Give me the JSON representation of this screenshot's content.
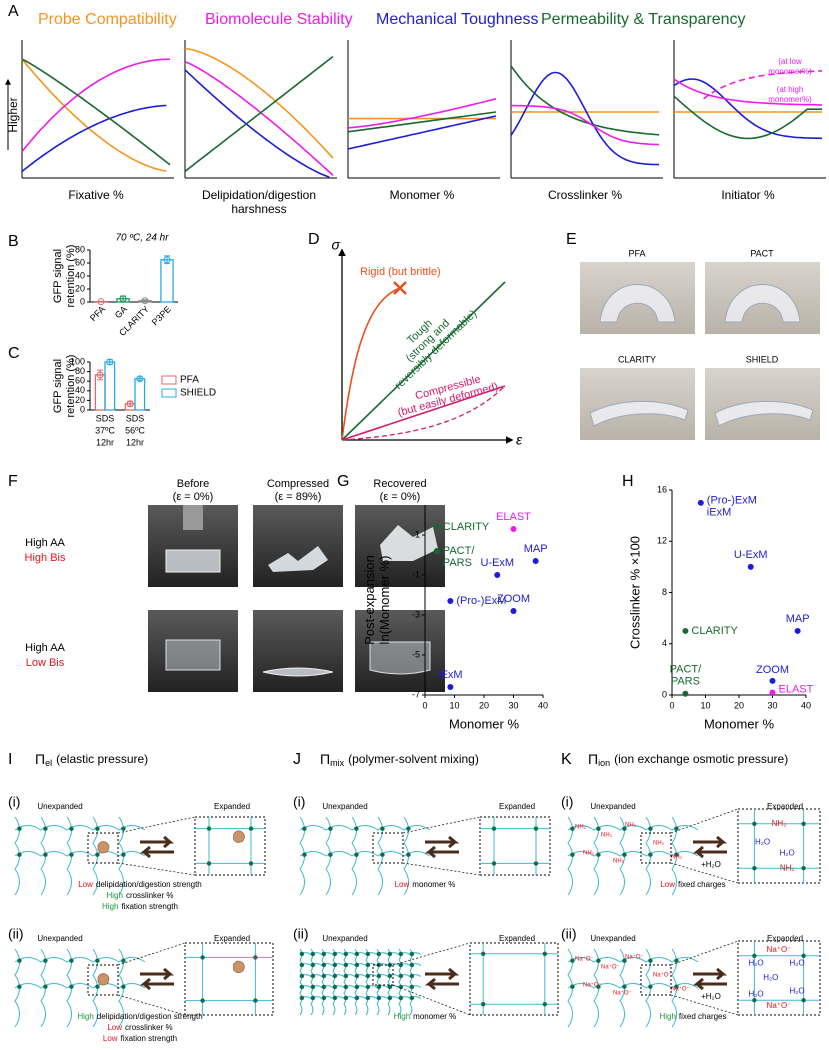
{
  "figure": {
    "A": {
      "label": "A",
      "legend": [
        {
          "name": "Probe Compatibility",
          "color": "#f7941d"
        },
        {
          "name": "Biomolecule Stability",
          "color": "#ec1cec"
        },
        {
          "name": "Mechanical Toughness",
          "color": "#1c1cd9"
        },
        {
          "name": "Permeability & Transparency",
          "color": "#17692f"
        }
      ],
      "y_label": "Higher",
      "x_labels": [
        [
          "Fixative %"
        ],
        [
          "Delipidation/digestion",
          "harshness"
        ],
        [
          "Monomer %"
        ],
        [
          "Crosslinker %"
        ],
        [
          "Initiator %"
        ]
      ],
      "annotations": [
        [
          "(at low",
          "monomer%)"
        ],
        [
          "(at high",
          "monomer%)"
        ]
      ]
    },
    "D": {
      "label": "D",
      "y_axis": "σ",
      "x_axis": "ε",
      "curves": [
        {
          "name": [
            "Rigid (but brittle)"
          ],
          "color": "#e8501f"
        },
        {
          "name": [
            "Tough",
            "(strong and",
            "reversibly deformable)"
          ],
          "color": "#17692f"
        },
        {
          "name": [
            "Compressible",
            "(but easily deformed)"
          ],
          "color": "#d6186b"
        }
      ]
    },
    "E": {
      "label": "E",
      "photos": [
        "PFA",
        "PACT",
        "CLARITY",
        "SHIELD"
      ]
    },
    "F": {
      "label": "F",
      "columns": [
        [
          "Before",
          "(ε = 0%)"
        ],
        [
          "Compressed",
          "(ε = 89%)"
        ],
        [
          "Recovered",
          "(ε = 0%)"
        ]
      ],
      "rows": [
        [
          {
            "text": "High AA",
            "color": "#000000"
          },
          {
            "text": "High Bis",
            "color": "#e8141c"
          }
        ],
        [
          {
            "text": "High AA",
            "color": "#000000"
          },
          {
            "text": "Low Bis",
            "color": "#e8141c"
          }
        ]
      ]
    },
    "I": {
      "label": "I",
      "title": {
        "symbol": "Π",
        "subscript": "el",
        "text": "(elastic pressure)"
      },
      "states": [
        "Unexpanded",
        "Expanded"
      ],
      "sub": [
        {
          "label": "(i)",
          "caption": [
            {
              "word": "Low",
              "color": "#e8141c",
              "text": "delipidation/digestion strength"
            },
            {
              "word": "High",
              "color": "#1a9a3c",
              "text": "crosslinker %"
            },
            {
              "word": "High",
              "color": "#1a9a3c",
              "text": "fixation strength"
            }
          ]
        },
        {
          "label": "(ii)",
          "caption": [
            {
              "word": "High",
              "color": "#1a9a3c",
              "text": "delipidation/digestion strength"
            },
            {
              "word": "Low",
              "color": "#e8141c",
              "text": "crosslinker %"
            },
            {
              "word": "Low",
              "color": "#e8141c",
              "text": "fixation strength"
            }
          ]
        }
      ]
    },
    "J": {
      "label": "J",
      "title": {
        "symbol": "Π",
        "subscript": "mix",
        "text": "(polymer-solvent mixing)"
      },
      "states": [
        "Unexpanded",
        "Expanded"
      ],
      "sub": [
        {
          "label": "(i)",
          "caption": [
            {
              "word": "Low",
              "color": "#e8141c",
              "text": "monomer %"
            }
          ]
        },
        {
          "label": "(ii)",
          "caption": [
            {
              "word": "High",
              "color": "#1a9a3c",
              "text": "monomer %"
            }
          ]
        }
      ]
    },
    "K": {
      "label": "K",
      "title": {
        "symbol": "Π",
        "subscript": "ion",
        "text": "(ion exchange osmotic pressure)"
      },
      "states": [
        "Unexpanded",
        "Expanded"
      ],
      "labels": {
        "amine": "NH₂",
        "water": "H₂O",
        "salt": "Na⁺O⁻",
        "add_water": "+H₂O"
      },
      "sub": [
        {
          "label": "(i)",
          "caption": [
            {
              "word": "Low",
              "color": "#e8141c",
              "text": "fixed charges"
            }
          ]
        },
        {
          "label": "(ii)",
          "caption": [
            {
              "word": "High",
              "color": "#1a9a3c",
              "text": "fixed charges"
            }
          ]
        }
      ]
    }
  },
  "chart_data": [
    {
      "type": "bar",
      "panel": "B",
      "title": "70 ºC, 24 hr",
      "y_label": [
        "GFP signal",
        "retention (%)"
      ],
      "categories": [
        "PFA",
        "GA",
        "CLARITY",
        "P3PE"
      ],
      "values": [
        0.5,
        5,
        2,
        65
      ],
      "errors": [
        0.5,
        4,
        1.5,
        6
      ],
      "colors": [
        "#e06a6a",
        "#1a9a5a",
        "#8a8a8a",
        "#29abe2"
      ],
      "ylim": [
        0,
        80
      ],
      "yticks": [
        0,
        20,
        40,
        60,
        80
      ]
    },
    {
      "type": "grouped_bar",
      "panel": "C",
      "y_label": [
        "GFP signal",
        "retention (%)"
      ],
      "categories": [
        [
          "SDS",
          "37ºC",
          "12hr"
        ],
        [
          "SDS",
          "56ºC",
          "12hr"
        ]
      ],
      "series": [
        {
          "name": "PFA",
          "color": "#e06a6a",
          "values": [
            73,
            13
          ],
          "errors": [
            10,
            5
          ]
        },
        {
          "name": "SHIELD",
          "color": "#29abe2",
          "values": [
            100,
            65
          ],
          "errors": [
            5,
            4
          ]
        }
      ],
      "ylim": [
        0,
        100
      ],
      "yticks": [
        0,
        20,
        40,
        60,
        80,
        100
      ]
    },
    {
      "type": "scatter",
      "panel": "G",
      "y_label": [
        "Post-expansion",
        "ln(Monomer %)"
      ],
      "x_label": "Monomer %",
      "points": [
        {
          "label": [
            "CLARITY"
          ],
          "x": 4,
          "y": 1.4,
          "color": "#17692f"
        },
        {
          "label": [
            "PACT/",
            "PARS"
          ],
          "x": 4,
          "y": 0.2,
          "color": "#17692f"
        },
        {
          "label": [
            "ELAST"
          ],
          "x": 30,
          "y": 1.3,
          "color": "#ec1cec"
        },
        {
          "label": [
            "MAP"
          ],
          "x": 37.5,
          "y": -0.3,
          "color": "#1c1cd9"
        },
        {
          "label": [
            "U-ExM"
          ],
          "x": 24.5,
          "y": -1,
          "color": "#1c1cd9"
        },
        {
          "label": [
            "(Pro-)ExM"
          ],
          "x": 8.6,
          "y": -2.3,
          "color": "#1c1cd9"
        },
        {
          "label": [
            "ZOOM"
          ],
          "x": 30,
          "y": -2.8,
          "color": "#1c1cd9"
        },
        {
          "label": [
            "iExM"
          ],
          "x": 8.6,
          "y": -6.6,
          "color": "#1c1cd9"
        }
      ],
      "xlim": [
        0,
        40
      ],
      "xticks": [
        0,
        10,
        20,
        30,
        40
      ],
      "ylim": [
        -7,
        2.5
      ],
      "yticks": [
        1,
        -1,
        -3,
        -5,
        -7
      ]
    },
    {
      "type": "scatter",
      "panel": "H",
      "y_label": [
        "Crosslinker % ×100"
      ],
      "x_label": "Monomer %",
      "points": [
        {
          "label": [
            "(Pro-)ExM",
            "iExM"
          ],
          "x": 8.6,
          "y": 15,
          "color": "#1c1cd9"
        },
        {
          "label": [
            "U-ExM"
          ],
          "x": 23.5,
          "y": 10,
          "color": "#1c1cd9"
        },
        {
          "label": [
            "CLARITY"
          ],
          "x": 4,
          "y": 5,
          "color": "#17692f"
        },
        {
          "label": [
            "MAP"
          ],
          "x": 37.5,
          "y": 5,
          "color": "#1c1cd9"
        },
        {
          "label": [
            "PACT/",
            "PARS"
          ],
          "x": 4,
          "y": 0.1,
          "color": "#17692f"
        },
        {
          "label": [
            "ZOOM"
          ],
          "x": 30,
          "y": 1.1,
          "color": "#1c1cd9"
        },
        {
          "label": [
            "ELAST"
          ],
          "x": 30,
          "y": 0.2,
          "color": "#ec1cec"
        }
      ],
      "xlim": [
        0,
        40
      ],
      "xticks": [
        0,
        10,
        20,
        30,
        40
      ],
      "ylim": [
        0,
        16
      ],
      "yticks": [
        0,
        4,
        8,
        12,
        16
      ]
    }
  ]
}
